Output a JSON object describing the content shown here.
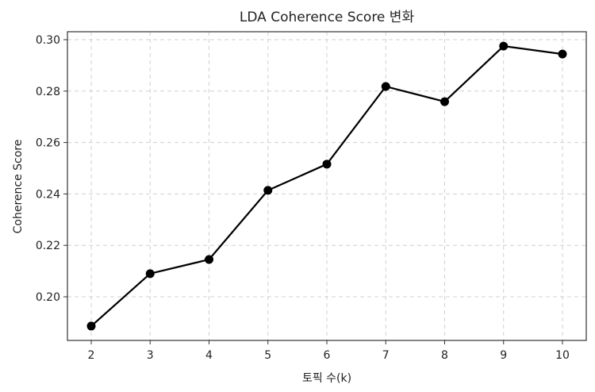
{
  "chart_data": {
    "type": "line",
    "title": "LDA Coherence Score 변화",
    "xlabel": "토픽 수(k)",
    "ylabel": "Coherence Score",
    "x": [
      2,
      3,
      4,
      5,
      6,
      7,
      8,
      9,
      10
    ],
    "series": [
      {
        "name": "Coherence Score",
        "values": [
          0.1886,
          0.209,
          0.2145,
          0.2414,
          0.2516,
          0.2818,
          0.2759,
          0.2975,
          0.2944
        ],
        "color": "#000000",
        "marker": "circle"
      }
    ],
    "xticks": [
      "2",
      "3",
      "4",
      "5",
      "6",
      "7",
      "8",
      "9",
      "10"
    ],
    "yticks": [
      "0.20",
      "0.22",
      "0.24",
      "0.26",
      "0.28",
      "0.30"
    ],
    "xlim": [
      1.6,
      10.4
    ],
    "ylim": [
      0.183,
      0.303
    ],
    "grid": true,
    "legend": null
  }
}
